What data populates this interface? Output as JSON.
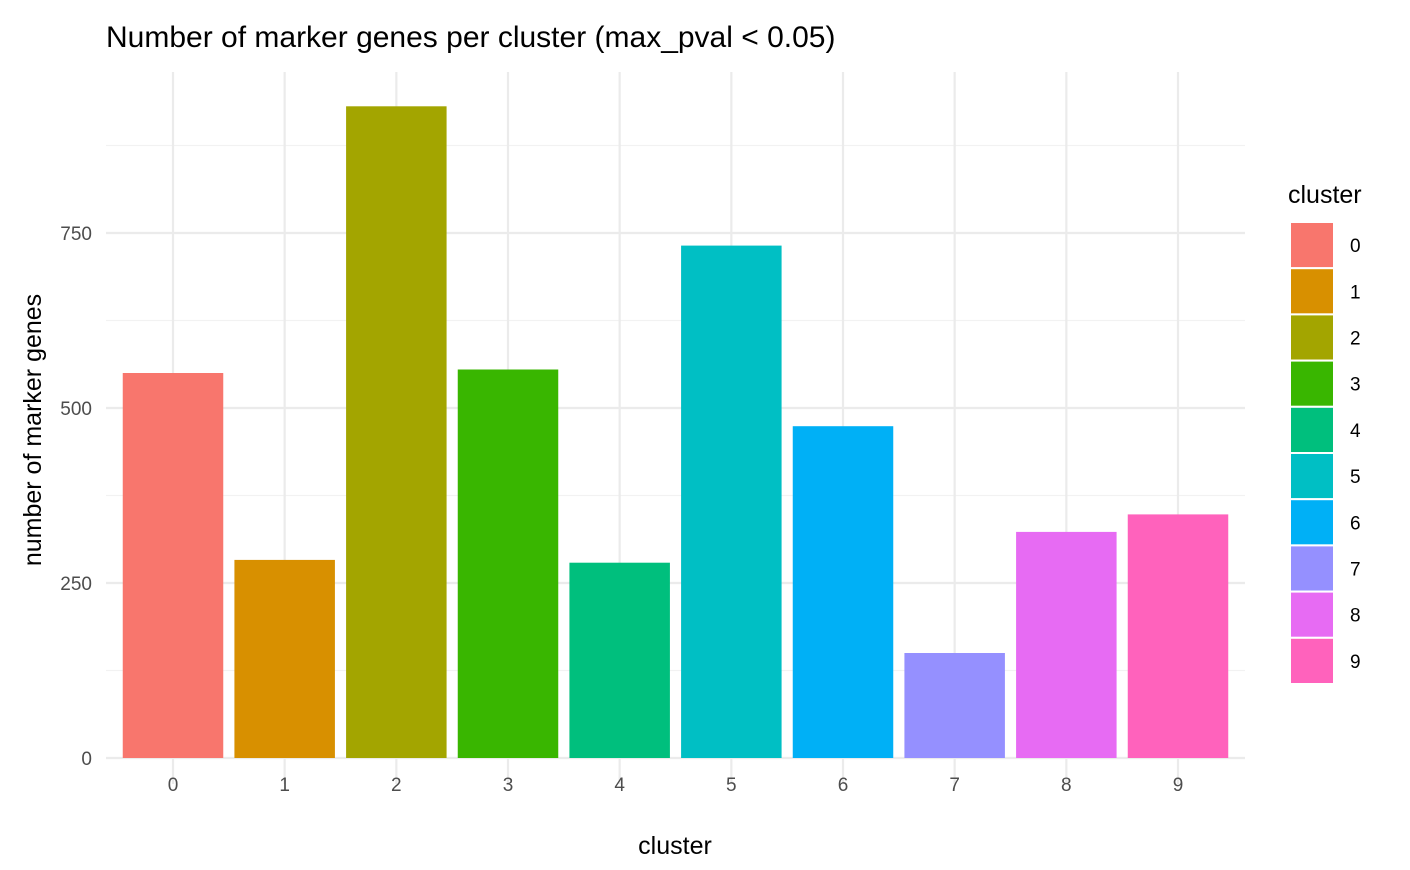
{
  "chart_data": {
    "type": "bar",
    "title": "Number of marker genes per cluster (max_pval < 0.05)",
    "xlabel": "cluster",
    "ylabel": "number of marker genes",
    "categories": [
      "0",
      "1",
      "2",
      "3",
      "4",
      "5",
      "6",
      "7",
      "8",
      "9"
    ],
    "values": [
      550,
      283,
      931,
      555,
      279,
      732,
      474,
      150,
      323,
      348
    ],
    "colors": [
      "#F8766D",
      "#D89000",
      "#A3A500",
      "#39B600",
      "#00BF7D",
      "#00BFC4",
      "#00B0F6",
      "#9590FF",
      "#E76BF3",
      "#FF62BC"
    ],
    "ylim": [
      0,
      980
    ],
    "yticks": [
      0,
      250,
      500,
      750
    ],
    "yticks_minor": [
      125,
      375,
      625,
      875
    ],
    "grid": true,
    "legend": {
      "title": "cluster",
      "position": "right",
      "entries": [
        "0",
        "1",
        "2",
        "3",
        "4",
        "5",
        "6",
        "7",
        "8",
        "9"
      ]
    }
  }
}
